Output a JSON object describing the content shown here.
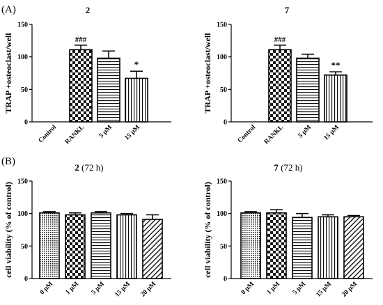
{
  "panel_labels": [
    "(A)",
    "(B)"
  ],
  "chart_data": [
    {
      "type": "bar",
      "title": "2",
      "title_suffix": "",
      "ylabel": "TRAP +osteoclast/well",
      "categories": [
        "Control",
        "RANKL",
        "5 μM",
        "15 μM"
      ],
      "values": [
        0,
        111,
        98,
        67
      ],
      "errors": [
        0,
        7,
        11,
        11
      ],
      "annotations": [
        "",
        "###",
        "",
        "*"
      ],
      "patterns": [
        "none",
        "check",
        "hline",
        "vline"
      ],
      "ylim": [
        0,
        150
      ],
      "yticks": [
        "0",
        "50",
        "100",
        "150"
      ]
    },
    {
      "type": "bar",
      "title": "7",
      "title_suffix": "",
      "ylabel": "TRAP +osteoclast/well",
      "categories": [
        "Control",
        "RANKL",
        "5 μM",
        "15 μM"
      ],
      "values": [
        0,
        111,
        98,
        72
      ],
      "errors": [
        0,
        7,
        6,
        5
      ],
      "annotations": [
        "",
        "###",
        "",
        "**"
      ],
      "patterns": [
        "none",
        "check",
        "hline",
        "vline"
      ],
      "ylim": [
        0,
        150
      ],
      "yticks": [
        "0",
        "50",
        "100",
        "150"
      ]
    },
    {
      "type": "bar",
      "title": "2",
      "title_suffix": " (72 h)",
      "ylabel": "cell viability (% of control)",
      "categories": [
        "0 μM",
        "1 μM",
        "5 μM",
        "15 μM",
        "20 μM"
      ],
      "values": [
        101,
        98,
        101,
        98,
        91
      ],
      "errors": [
        2,
        3,
        2,
        2,
        7
      ],
      "annotations": [
        "",
        "",
        "",
        "",
        ""
      ],
      "patterns": [
        "dots",
        "check",
        "hline",
        "vline",
        "diag"
      ],
      "ylim": [
        0,
        150
      ],
      "yticks": [
        "0",
        "50",
        "100",
        "150"
      ]
    },
    {
      "type": "bar",
      "title": "7",
      "title_suffix": " (72 h)",
      "ylabel": "cell viability (% of control)",
      "categories": [
        "0 μM",
        "1 μM",
        "5 μM",
        "15 μM",
        "20 μM"
      ],
      "values": [
        101,
        101,
        94,
        95,
        95
      ],
      "errors": [
        2,
        5,
        6,
        3,
        2
      ],
      "annotations": [
        "",
        "",
        "",
        "",
        ""
      ],
      "patterns": [
        "dots",
        "check",
        "hline",
        "vline",
        "diag"
      ],
      "ylim": [
        0,
        150
      ],
      "yticks": [
        "0",
        "50",
        "100",
        "150"
      ]
    }
  ]
}
